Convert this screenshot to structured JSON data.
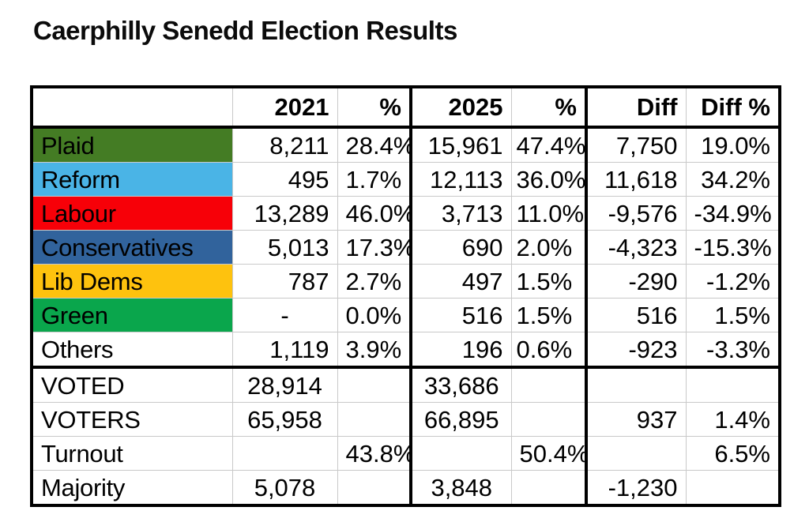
{
  "title": "Caerphilly Senedd Election Results",
  "table": {
    "headers": [
      "",
      "2021",
      "%",
      "2025",
      "%",
      "Diff",
      "Diff %"
    ],
    "party_rows": [
      {
        "label": "Plaid",
        "color": "#447c24",
        "values": [
          "8,211",
          "28.4%",
          "15,961",
          "47.4%",
          "7,750",
          "19.0%"
        ]
      },
      {
        "label": "Reform",
        "color": "#4ab4e6",
        "values": [
          "495",
          "1.7%",
          "12,113",
          "36.0%",
          "11,618",
          "34.2%"
        ]
      },
      {
        "label": "Labour",
        "color": "#f70008",
        "values": [
          "13,289",
          "46.0%",
          "3,713",
          "11.0%",
          "-9,576",
          "-34.9%"
        ]
      },
      {
        "label": "Conservatives",
        "color": "#31639c",
        "values": [
          "5,013",
          "17.3%",
          "690",
          "2.0%",
          "-4,323",
          "-15.3%"
        ]
      },
      {
        "label": "Lib Dems",
        "color": "#fec20e",
        "values": [
          "787",
          "2.7%",
          "497",
          "1.5%",
          "-290",
          "-1.2%"
        ]
      },
      {
        "label": "Green",
        "color": "#0aa64c",
        "values": [
          "-",
          "0.0%",
          "516",
          "1.5%",
          "516",
          "1.5%"
        ]
      },
      {
        "label": "Others",
        "color": "#ffffff",
        "values": [
          "1,119",
          "3.9%",
          "196",
          "0.6%",
          "-923",
          "-3.3%"
        ]
      }
    ],
    "summary_rows": [
      {
        "label": "VOTED",
        "values": [
          "28,914",
          "",
          "33,686",
          "",
          "",
          ""
        ]
      },
      {
        "label": "VOTERS",
        "values": [
          "65,958",
          "",
          "66,895",
          "",
          "937",
          "1.4%"
        ]
      },
      {
        "label": "Turnout",
        "values": [
          "",
          "43.8%",
          "",
          "50.4%",
          "",
          "6.5%"
        ]
      },
      {
        "label": "Majority",
        "values": [
          "5,078",
          "",
          "3,848",
          "",
          "-1,230",
          ""
        ]
      }
    ]
  }
}
